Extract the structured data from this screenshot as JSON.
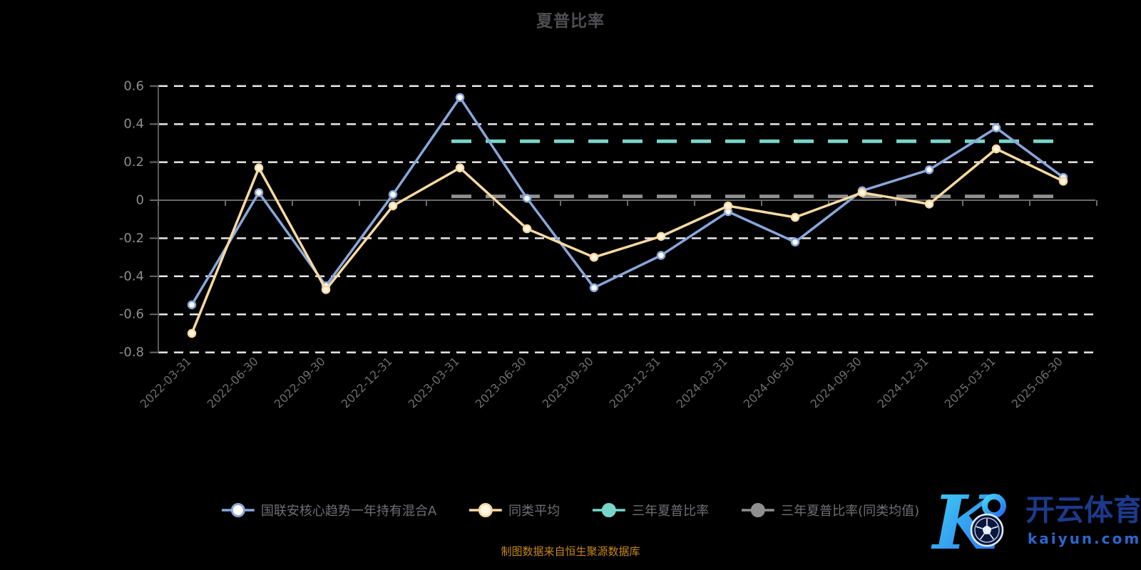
{
  "title": "夏普比率",
  "caption": "制图数据来自恒生聚源数据库",
  "watermark": {
    "logo_letter": "K",
    "brand": "开云体育",
    "domain": "kaiyun.com",
    "brand_color": "#1c3a8c",
    "domain_color": "#2d66cc"
  },
  "colors": {
    "background": "#000000",
    "title": "#4e4e52",
    "grid_dash": "#e8e8e8",
    "axis": "#6a6a6a",
    "y_label": "#8d8d8d",
    "x_label": "#6d6d6d",
    "legend_text": "#6f6f74",
    "caption_text": "#c8881c"
  },
  "chart_data": {
    "type": "line",
    "title": "夏普比率",
    "categories": [
      "2022-03-31",
      "2022-06-30",
      "2022-09-30",
      "2022-12-31",
      "2023-03-31",
      "2023-06-30",
      "2023-09-30",
      "2023-12-31",
      "2024-03-31",
      "2024-06-30",
      "2024-09-30",
      "2024-12-31",
      "2025-03-31",
      "2025-06-30"
    ],
    "yticks": [
      0.6,
      0.4,
      0.2,
      0,
      -0.2,
      -0.4,
      -0.6,
      -0.8
    ],
    "ytick_labels": [
      "0.6",
      "0.4",
      "0.2",
      "0",
      "-0.2",
      "-0.4",
      "-0.6",
      "-0.8"
    ],
    "ylim": [
      -0.8,
      0.6
    ],
    "grid": "dashed-horizontal",
    "legend_position": "bottom",
    "series": [
      {
        "name": "国联安核心趋势一年持有混合A",
        "color": "#88a6da",
        "style": "solid",
        "marker": "ring",
        "dot_fill": "#ffffff",
        "values": [
          -0.55,
          0.04,
          -0.45,
          0.03,
          0.54,
          0.01,
          -0.46,
          -0.29,
          -0.06,
          -0.22,
          0.05,
          0.16,
          0.38,
          0.12
        ]
      },
      {
        "name": "同类平均",
        "color": "#f7d9a2",
        "style": "solid",
        "marker": "ring",
        "dot_fill": "#fff7e6",
        "values": [
          -0.7,
          0.17,
          -0.47,
          -0.03,
          0.17,
          -0.15,
          -0.3,
          -0.19,
          -0.03,
          -0.09,
          0.04,
          -0.02,
          0.27,
          0.1
        ]
      },
      {
        "name": "三年夏普比率",
        "color": "#79d5c9",
        "style": "dashed",
        "marker": "solid",
        "value": 0.31,
        "span": [
          4,
          13
        ]
      },
      {
        "name": "三年夏普比率(同类均值)",
        "color": "#8f8f8f",
        "style": "dashed",
        "marker": "solid",
        "value": 0.02,
        "span": [
          4,
          13
        ]
      }
    ]
  }
}
